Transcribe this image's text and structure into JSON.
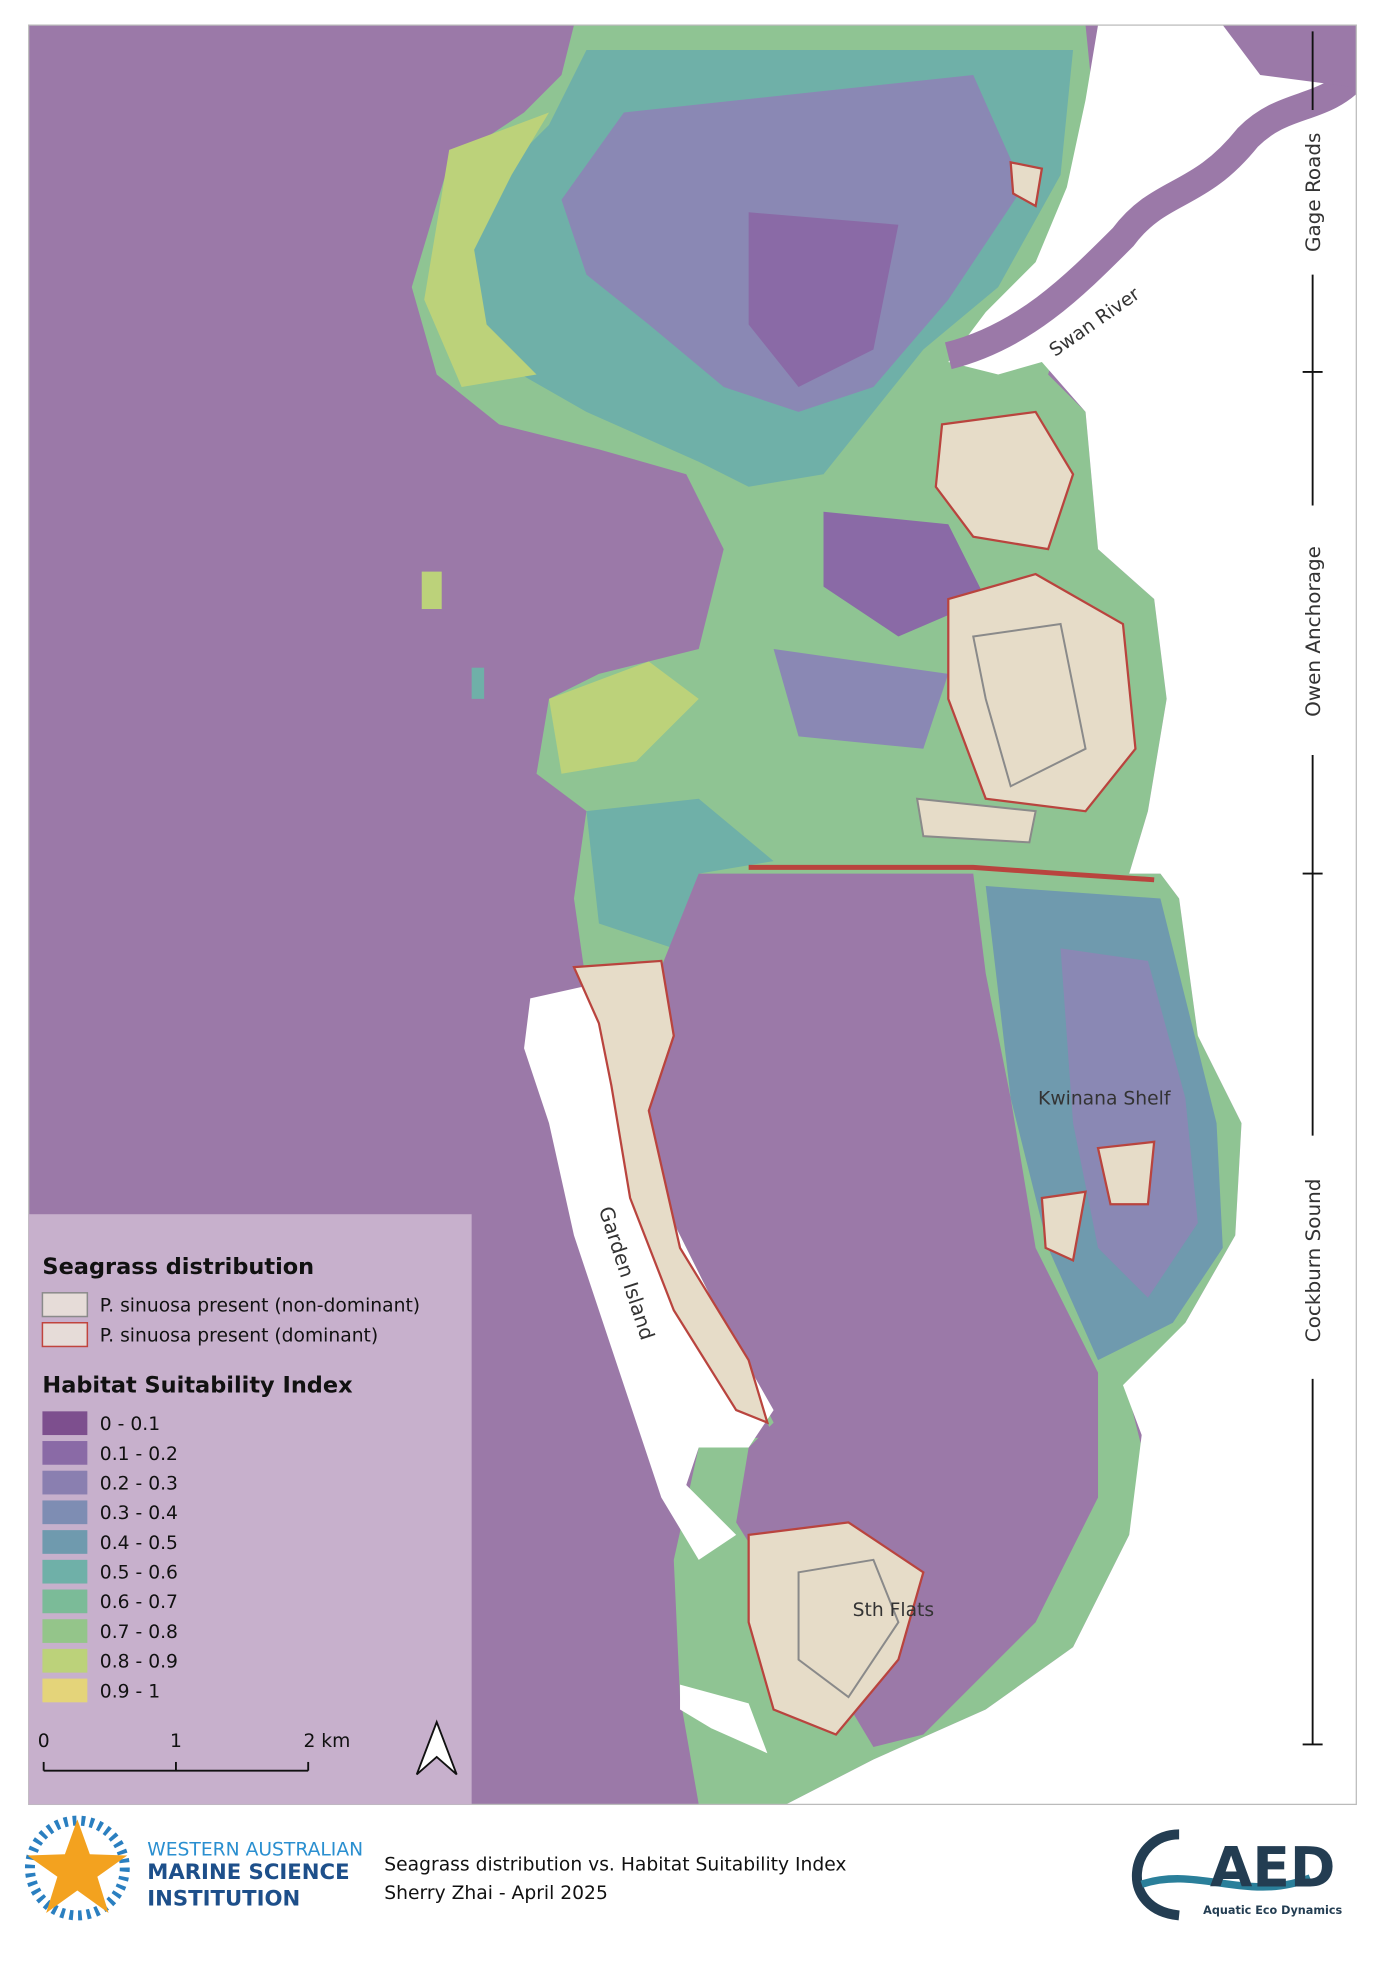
{
  "map": {
    "place_labels": {
      "swan_river": "Swan River",
      "garden_island": "Garden Island",
      "kwinana_shelf": "Kwinana Shelf",
      "sth_flats": "Sth Flats"
    },
    "zones": [
      "Gage Roads",
      "Owen Anchorage",
      "Cockburn Sound"
    ]
  },
  "legend": {
    "seagrass_title": "Seagrass distribution",
    "seagrass_items": [
      {
        "label": "P. sinuosa present (non-dominant)",
        "fill": "#e6dcd8",
        "stroke": "#8a8a8a"
      },
      {
        "label": "P. sinuosa present (dominant)",
        "fill": "#e6dcd8",
        "stroke": "#c0443e"
      }
    ],
    "hsi_title": "Habitat Suitability Index",
    "hsi_items": [
      {
        "label": "0 - 0.1",
        "color": "#7d4f8e"
      },
      {
        "label": "0.1 - 0.2",
        "color": "#8a6aa6"
      },
      {
        "label": "0.2 - 0.3",
        "color": "#8a7fb0"
      },
      {
        "label": "0.3 - 0.4",
        "color": "#7e8db3"
      },
      {
        "label": "0.4 - 0.5",
        "color": "#6f9aae"
      },
      {
        "label": "0.5 - 0.6",
        "color": "#6fb0a8"
      },
      {
        "label": "0.6 - 0.7",
        "color": "#7bbb98"
      },
      {
        "label": "0.7 - 0.8",
        "color": "#94c58a"
      },
      {
        "label": "0.8 - 0.9",
        "color": "#bcd27a"
      },
      {
        "label": "0.9 - 1",
        "color": "#e4d47a"
      }
    ]
  },
  "scale_bar": {
    "labels": [
      "0",
      "1",
      "2 km"
    ]
  },
  "footer": {
    "institution": [
      "WESTERN AUSTRALIAN",
      "MARINE SCIENCE",
      "INSTITUTION"
    ],
    "title": "Seagrass distribution vs. Habitat Suitability Index",
    "author": "Sherry Zhai - April 2025",
    "aed_logo": "AED",
    "aed_tagline": "Aquatic Eco Dynamics"
  }
}
